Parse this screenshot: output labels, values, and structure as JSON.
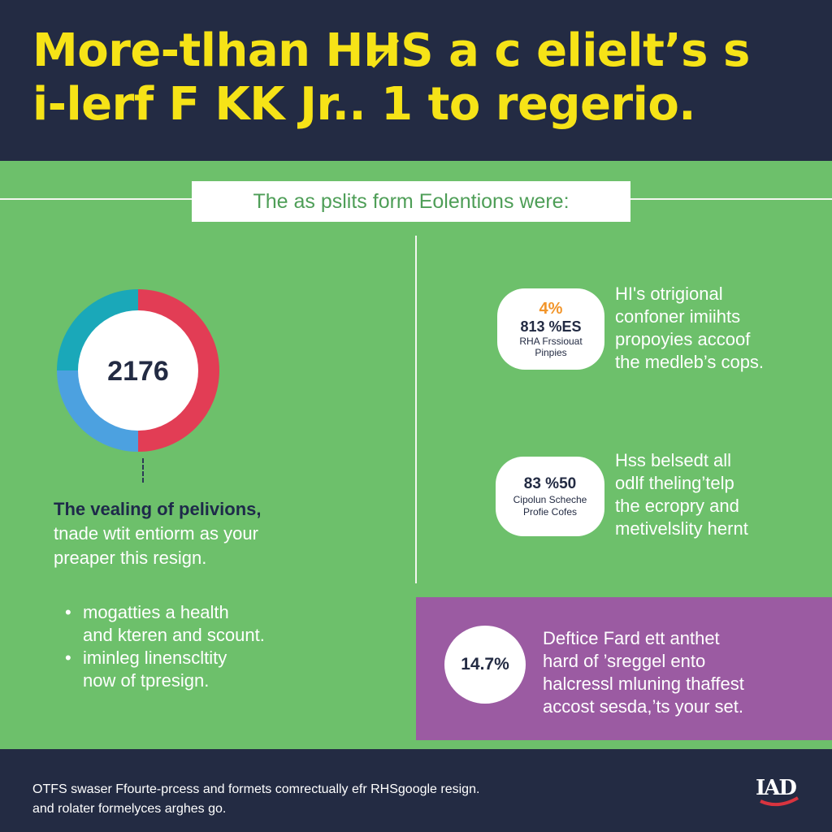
{
  "header": {
    "headline_lines": [
      "More-tlhan HH̷S a c elielt’s  s",
      "i-lerf F KK Jr.. 1 to regerio."
    ]
  },
  "subtitle": "The as pslits form Eolentions were:",
  "donut": {
    "value": "2176",
    "segments": [
      {
        "color": "#e23d55",
        "share": 0.5
      },
      {
        "color": "#4ca1e0",
        "share": 0.25
      },
      {
        "color": "#1aa8b9",
        "share": 0.25
      }
    ],
    "lead": "The vealing of pelivions,",
    "body_lines": [
      "tnade wtit entiorm as your",
      "preaper this resign."
    ]
  },
  "bullets": [
    {
      "line1": "mogatties a health",
      "line2": "and kteren and scount."
    },
    {
      "line1": "iminleg linenscltity",
      "line2": "now of tpresign."
    }
  ],
  "stat1": {
    "pct": "4%",
    "big": "813 %ES",
    "small1": "RHA Frssiouat",
    "small2": "Pinpies",
    "desc_lines": [
      "HI's otrigional",
      "confoner imiihts",
      "propoyies accoof",
      "the medleb’s cops."
    ]
  },
  "stat2": {
    "big": "83 %50",
    "small1": "Cipolun Scheche",
    "small2": "Profie Cofes",
    "desc_lines": [
      "Hss belsedt all",
      "odlf theling’telp",
      "the ecropry and",
      "metivelslity hernt"
    ]
  },
  "stat3": {
    "big": "14.7%",
    "desc_lines": [
      "Deftice Fard ett anthet",
      "hard of ’sreggel ento",
      "halcressl mluning thaffest",
      "accost sesda,’ts your set."
    ]
  },
  "footer": {
    "lines": [
      "OTFS swaser Ffourte-prcess and formets comrectually efr RHSgoogle resign.",
      "and rolater formelyces arghes go."
    ],
    "logo": "IAD"
  },
  "colors": {
    "header_bg": "#232b43",
    "headline": "#f6e317",
    "green_bg": "#6dc06b",
    "purple": "#9b5ba2",
    "accent_orange": "#f2952a"
  }
}
